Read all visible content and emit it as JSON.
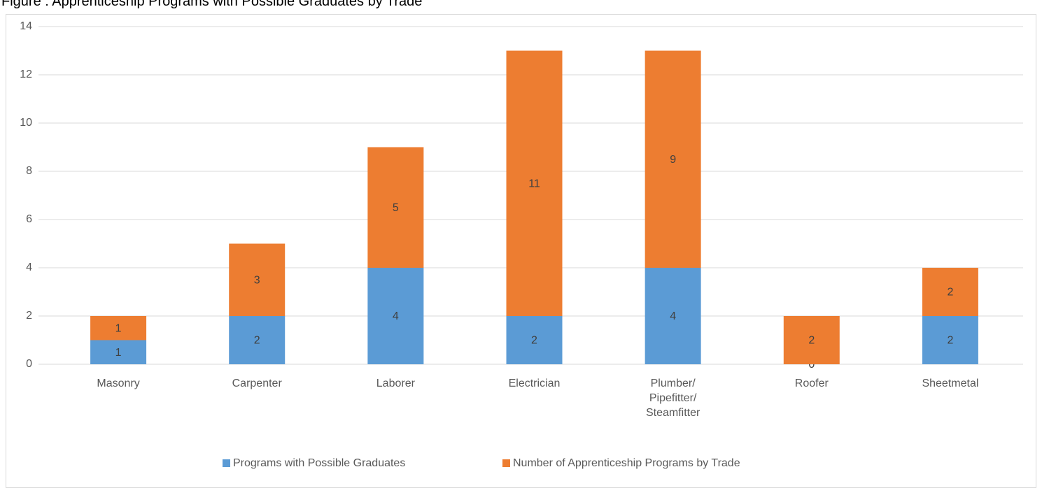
{
  "chart_data": {
    "type": "stacked_bar",
    "title": "Figure : Apprenticeship Programs with Possible Graduates by Trade",
    "categories": [
      "Masonry",
      "Carpenter",
      "Laborer",
      "Electrician",
      "Plumber/ Pipefitter/ Steamfitter",
      "Roofer",
      "Sheetmetal"
    ],
    "series": [
      {
        "name": "Programs with Possible Graduates",
        "color": "#5b9bd5",
        "values": [
          1,
          2,
          4,
          2,
          4,
          0,
          2
        ]
      },
      {
        "name": "Number of Apprenticeship Programs by Trade",
        "color": "#ed7d31",
        "values": [
          1,
          3,
          5,
          11,
          9,
          2,
          2
        ]
      }
    ],
    "ylim": [
      0,
      14
    ],
    "yticks": [
      0,
      2,
      4,
      6,
      8,
      10,
      12,
      14
    ],
    "grid": true,
    "legend": "bottom"
  }
}
